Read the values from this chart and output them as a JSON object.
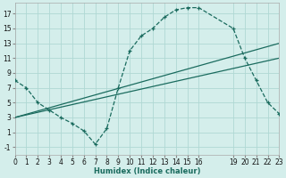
{
  "xlabel": "Humidex (Indice chaleur)",
  "xlim": [
    0,
    23
  ],
  "ylim": [
    -2,
    18.5
  ],
  "yticks": [
    -1,
    1,
    3,
    5,
    7,
    9,
    11,
    13,
    15,
    17
  ],
  "xticks": [
    0,
    1,
    2,
    3,
    4,
    5,
    6,
    7,
    8,
    9,
    10,
    11,
    12,
    13,
    14,
    15,
    16,
    19,
    20,
    21,
    22,
    23
  ],
  "bg_color": "#d4eeeb",
  "line_color": "#1a6b5e",
  "grid_color": "#b0d8d4",
  "main_curve_x": [
    0,
    1,
    2,
    3,
    4,
    5,
    6,
    7,
    8,
    9,
    10,
    11,
    12,
    13,
    14,
    15,
    16,
    19,
    20,
    21,
    22,
    23
  ],
  "main_curve_y": [
    8.0,
    7.0,
    5.0,
    4.0,
    3.0,
    2.2,
    1.2,
    -0.6,
    1.5,
    7.0,
    12.0,
    14.0,
    15.0,
    16.5,
    17.5,
    17.8,
    17.8,
    15.0,
    11.0,
    8.0,
    5.0,
    3.5
  ],
  "line1_x": [
    0,
    23
  ],
  "line1_y": [
    3.0,
    13.0
  ],
  "line2_x": [
    0,
    23
  ],
  "line2_y": [
    3.0,
    11.0
  ]
}
